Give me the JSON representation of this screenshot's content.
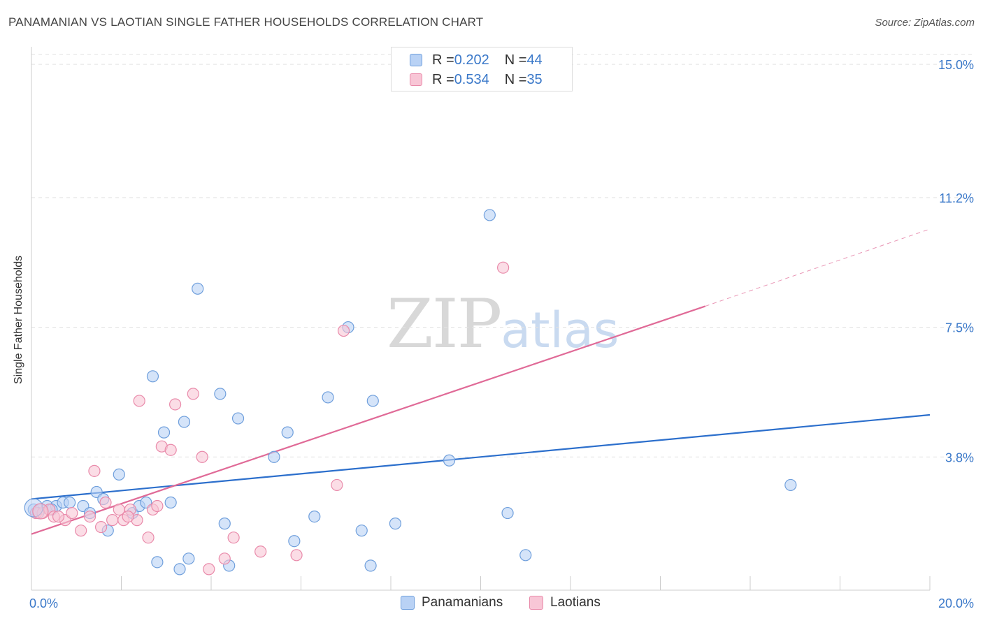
{
  "title": "PANAMANIAN VS LAOTIAN SINGLE FATHER HOUSEHOLDS CORRELATION CHART",
  "source": "Source: ZipAtlas.com",
  "watermark": {
    "zip": "ZIP",
    "atlas": "atlas"
  },
  "legend": {
    "rows": [
      {
        "r_label": "R = ",
        "r_value": "0.202",
        "n_label": "N = ",
        "n_value": "44"
      },
      {
        "r_label": "R = ",
        "r_value": "0.534",
        "n_label": "N = ",
        "n_value": "35"
      }
    ]
  },
  "bottom_legend": [
    "Panamanians",
    "Laotians"
  ],
  "colors": {
    "blue_fill": "#b9d2f5",
    "blue_stroke": "#6f9fdc",
    "blue_line": "#2c6fcc",
    "pink_fill": "#f8c6d6",
    "pink_stroke": "#e98aaa",
    "pink_line": "#e06a97",
    "tick_label": "#3a78c9",
    "grid": "#e2e2e2"
  },
  "chart_data": {
    "type": "scatter",
    "xlabel": "",
    "ylabel": "Single Father Households",
    "xlim": [
      0,
      20
    ],
    "ylim": [
      0,
      15.4
    ],
    "x_tick_labels": [
      {
        "value": 0,
        "label": "0.0%"
      },
      {
        "value": 20,
        "label": "20.0%"
      }
    ],
    "y_tick_labels": [
      {
        "value": 3.8,
        "label": "3.8%"
      },
      {
        "value": 7.5,
        "label": "7.5%"
      },
      {
        "value": 11.2,
        "label": "11.2%"
      },
      {
        "value": 15.0,
        "label": "15.0%"
      }
    ],
    "grid": true,
    "legend_position": "top-center",
    "series": [
      {
        "name": "Panamanians",
        "r": 0.202,
        "n": 44,
        "trend": {
          "x": [
            0,
            20
          ],
          "y": [
            2.6,
            5.0
          ]
        },
        "points": [
          {
            "x": 0.05,
            "y": 2.3
          },
          {
            "x": 0.2,
            "y": 2.3
          },
          {
            "x": 0.35,
            "y": 2.4
          },
          {
            "x": 0.55,
            "y": 2.4
          },
          {
            "x": 0.7,
            "y": 2.5
          },
          {
            "x": 0.85,
            "y": 2.5
          },
          {
            "x": 1.15,
            "y": 2.4
          },
          {
            "x": 1.3,
            "y": 2.2
          },
          {
            "x": 1.45,
            "y": 2.8
          },
          {
            "x": 1.6,
            "y": 2.6
          },
          {
            "x": 1.7,
            "y": 1.7
          },
          {
            "x": 1.95,
            "y": 3.3
          },
          {
            "x": 2.25,
            "y": 2.2
          },
          {
            "x": 2.4,
            "y": 2.4
          },
          {
            "x": 2.55,
            "y": 2.5
          },
          {
            "x": 2.7,
            "y": 6.1
          },
          {
            "x": 2.8,
            "y": 0.8
          },
          {
            "x": 2.95,
            "y": 4.5
          },
          {
            "x": 3.1,
            "y": 2.5
          },
          {
            "x": 3.3,
            "y": 0.6
          },
          {
            "x": 3.4,
            "y": 4.8
          },
          {
            "x": 3.5,
            "y": 0.9
          },
          {
            "x": 3.7,
            "y": 8.6
          },
          {
            "x": 4.2,
            "y": 5.6
          },
          {
            "x": 4.3,
            "y": 1.9
          },
          {
            "x": 4.4,
            "y": 0.7
          },
          {
            "x": 4.6,
            "y": 4.9
          },
          {
            "x": 5.4,
            "y": 3.8
          },
          {
            "x": 5.7,
            "y": 4.5
          },
          {
            "x": 5.85,
            "y": 1.4
          },
          {
            "x": 6.3,
            "y": 2.1
          },
          {
            "x": 6.6,
            "y": 5.5
          },
          {
            "x": 7.05,
            "y": 7.5
          },
          {
            "x": 7.35,
            "y": 1.7
          },
          {
            "x": 7.55,
            "y": 0.7
          },
          {
            "x": 7.6,
            "y": 5.4
          },
          {
            "x": 8.1,
            "y": 1.9
          },
          {
            "x": 9.3,
            "y": 3.7
          },
          {
            "x": 10.2,
            "y": 10.7
          },
          {
            "x": 10.6,
            "y": 2.2
          },
          {
            "x": 11.0,
            "y": 1.0
          },
          {
            "x": 16.9,
            "y": 3.0
          },
          {
            "x": 0.15,
            "y": 2.2
          },
          {
            "x": 0.45,
            "y": 2.3
          }
        ]
      },
      {
        "name": "Laotians",
        "r": 0.534,
        "n": 35,
        "trend": {
          "x": [
            0,
            15.0
          ],
          "y": [
            1.6,
            8.1
          ]
        },
        "trend_dashed": {
          "x": [
            15.0,
            20
          ],
          "y": [
            8.1,
            10.3
          ]
        },
        "points": [
          {
            "x": 0.1,
            "y": 2.2
          },
          {
            "x": 0.25,
            "y": 2.2
          },
          {
            "x": 0.4,
            "y": 2.3
          },
          {
            "x": 0.5,
            "y": 2.1
          },
          {
            "x": 0.75,
            "y": 2.0
          },
          {
            "x": 0.9,
            "y": 2.2
          },
          {
            "x": 1.1,
            "y": 1.7
          },
          {
            "x": 1.3,
            "y": 2.1
          },
          {
            "x": 1.4,
            "y": 3.4
          },
          {
            "x": 1.55,
            "y": 1.8
          },
          {
            "x": 1.65,
            "y": 2.5
          },
          {
            "x": 1.8,
            "y": 2.0
          },
          {
            "x": 1.95,
            "y": 2.3
          },
          {
            "x": 2.05,
            "y": 2.0
          },
          {
            "x": 2.2,
            "y": 2.3
          },
          {
            "x": 2.35,
            "y": 2.0
          },
          {
            "x": 2.4,
            "y": 5.4
          },
          {
            "x": 2.6,
            "y": 1.5
          },
          {
            "x": 2.7,
            "y": 2.3
          },
          {
            "x": 2.8,
            "y": 2.4
          },
          {
            "x": 2.9,
            "y": 4.1
          },
          {
            "x": 3.1,
            "y": 4.0
          },
          {
            "x": 3.2,
            "y": 5.3
          },
          {
            "x": 3.6,
            "y": 5.6
          },
          {
            "x": 3.8,
            "y": 3.8
          },
          {
            "x": 3.95,
            "y": 0.6
          },
          {
            "x": 4.3,
            "y": 0.9
          },
          {
            "x": 4.5,
            "y": 1.5
          },
          {
            "x": 5.1,
            "y": 1.1
          },
          {
            "x": 5.9,
            "y": 1.0
          },
          {
            "x": 6.8,
            "y": 3.0
          },
          {
            "x": 6.95,
            "y": 7.4
          },
          {
            "x": 10.5,
            "y": 9.2
          },
          {
            "x": 0.6,
            "y": 2.1
          },
          {
            "x": 2.15,
            "y": 2.1
          }
        ]
      }
    ]
  }
}
